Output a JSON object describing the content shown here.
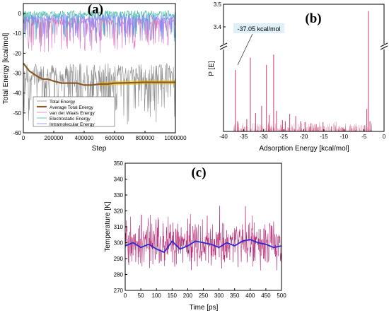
{
  "panels": {
    "a": "(a)",
    "b": "(b)",
    "c": "(c)"
  },
  "colors": {
    "total": "#8a8a8a",
    "average": "#8b5a2b",
    "average_highlight": "#e6b800",
    "vdw": "#e070c0",
    "electrostatic": "#3cb9a0",
    "intramolecular": "#8888ff",
    "adsorption": "#d04a7a",
    "temperature": "#b0186a",
    "temperature_avg": "#2a2ad0"
  },
  "chart_data": [
    {
      "id": "a",
      "type": "line",
      "xlabel": "Step",
      "ylabel": "Total Energy [kcal/mol]",
      "xlim": [
        0,
        1000000
      ],
      "ylim": [
        -60,
        5
      ],
      "xticks": [
        0,
        200000,
        400000,
        600000,
        800000,
        1000000
      ],
      "yticks": [
        0,
        -10,
        -20,
        -30,
        -40,
        -50,
        -60
      ],
      "legend_position": "bottom-left",
      "series": [
        {
          "name": "Total Energy",
          "x": [
            0,
            1000000
          ],
          "y": [
            -35,
            -35
          ]
        },
        {
          "name": "Average Total Energy",
          "x": [
            0,
            20000,
            40000,
            60000,
            80000,
            100000,
            130000,
            160000,
            200000,
            250000,
            300000,
            350000,
            400000,
            450000,
            500000,
            550000,
            600000,
            700000,
            800000,
            900000,
            1000000
          ],
          "y": [
            -25,
            -27,
            -29,
            -30,
            -31,
            -32,
            -33,
            -33,
            -34,
            -35,
            -35,
            -35,
            -36,
            -36,
            -35.5,
            -35.5,
            -35,
            -34.8,
            -34.6,
            -34.6,
            -34.6
          ]
        },
        {
          "name": "van der Waals Energy",
          "x": [
            0,
            1000000
          ],
          "y": [
            -5,
            -5
          ]
        },
        {
          "name": "Electrostatic Energy",
          "x": [
            0,
            1000000
          ],
          "y": [
            0,
            0
          ]
        },
        {
          "name": "Intramolecular Energy",
          "x": [
            0,
            1000000
          ],
          "y": [
            -3,
            -3
          ]
        }
      ]
    },
    {
      "id": "b",
      "type": "bar",
      "xlabel": "Adsorption Energy [kcal/mol]",
      "ylabel": "P [E]",
      "xlim": [
        -40,
        0
      ],
      "xticks": [
        -40,
        -35,
        -30,
        -25,
        -20,
        -15,
        -10,
        -5,
        0
      ],
      "yticks": [
        3.4,
        3.5
      ],
      "axis_break": true,
      "annotation": "-37.05 kcal/mol",
      "x": [
        -37.05,
        -36.5,
        -34.2,
        -33.3,
        -32.0,
        -30.5,
        -29.3,
        -28.6,
        -27.5,
        -26.8,
        -25.3,
        -24.6,
        -23.5,
        -22.0,
        -20.8,
        -19.7,
        -18.2,
        -16.9,
        -15.2,
        -13.1,
        -10.5,
        -8.0,
        -4.8,
        -4.3,
        -3.9,
        -3.5
      ],
      "y": [
        0.6,
        0.1,
        0.12,
        0.72,
        0.18,
        0.25,
        0.65,
        0.16,
        0.75,
        0.2,
        0.11,
        0.1,
        0.17,
        0.15,
        0.1,
        0.09,
        0.08,
        0.07,
        0.09,
        0.05,
        0.04,
        0.03,
        0.06,
        0.22,
        3.47,
        0.1
      ]
    },
    {
      "id": "c",
      "type": "line",
      "xlabel": "Time [ps]",
      "ylabel": "Temperature [K]",
      "xlim": [
        0,
        500
      ],
      "ylim": [
        270,
        350
      ],
      "xticks": [
        0,
        50,
        100,
        150,
        200,
        250,
        300,
        350,
        400,
        450,
        500
      ],
      "yticks": [
        270,
        280,
        290,
        300,
        310,
        320,
        330,
        340,
        350
      ],
      "series": [
        {
          "name": "",
          "x": [
            0,
            500
          ],
          "y": [
            300,
            300
          ]
        },
        {
          "name": "",
          "x": [
            0,
            25,
            50,
            75,
            100,
            125,
            150,
            175,
            200,
            225,
            250,
            275,
            300,
            325,
            350,
            375,
            400,
            425,
            450,
            475,
            500
          ],
          "y": [
            298,
            300,
            297,
            299,
            296,
            294,
            301,
            296,
            298,
            301,
            300,
            299,
            297,
            300,
            298,
            301,
            302,
            300,
            299,
            297,
            298
          ]
        }
      ]
    }
  ]
}
